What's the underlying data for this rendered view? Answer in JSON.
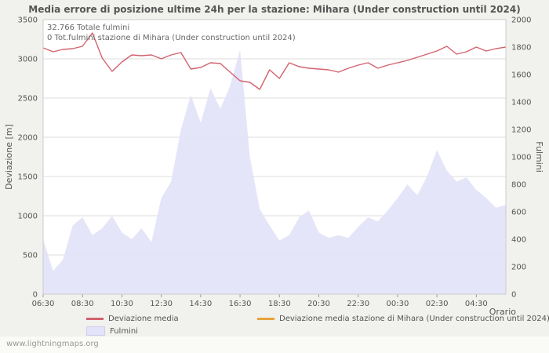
{
  "page": {
    "footer": "www.lightningmaps.org"
  },
  "chart_data": {
    "type": "line",
    "title": "Media errore di posizione ultime 24h per la stazione: Mihara (Under construction until 2024)",
    "annotations": [
      "32.766 Totale fulmini",
      "0 Tot.fulmini stazione di Mihara (Under construction until 2024)"
    ],
    "x_label": "Orario",
    "x_tick_every": 4,
    "x": [
      "06:30",
      "07:00",
      "07:30",
      "08:00",
      "08:30",
      "09:00",
      "09:30",
      "10:00",
      "10:30",
      "11:00",
      "11:30",
      "12:00",
      "12:30",
      "13:00",
      "13:30",
      "14:00",
      "14:30",
      "15:00",
      "15:30",
      "16:00",
      "16:30",
      "17:00",
      "17:30",
      "18:00",
      "18:30",
      "19:00",
      "19:30",
      "20:00",
      "20:30",
      "21:00",
      "21:30",
      "22:00",
      "22:30",
      "23:00",
      "23:30",
      "00:00",
      "00:30",
      "01:00",
      "01:30",
      "02:00",
      "02:30",
      "03:00",
      "03:30",
      "04:00",
      "04:30",
      "05:00",
      "05:30",
      "06:00"
    ],
    "left_axis": {
      "label": "Deviazione  [m]",
      "min": 0,
      "max": 3500,
      "ticks": [
        3500,
        3000,
        2500,
        2000,
        1500,
        1000,
        500,
        0
      ]
    },
    "right_axis": {
      "label": "Fulmini",
      "min": 0,
      "max": 2000,
      "ticks": [
        2000,
        1800,
        1600,
        1400,
        1200,
        1000,
        800,
        600,
        400,
        200,
        0
      ]
    },
    "series": [
      {
        "name": "Deviazione media",
        "type": "line",
        "axis": "left",
        "color": "#d2626e",
        "values": [
          3140,
          3090,
          3120,
          3130,
          3160,
          3330,
          3010,
          2840,
          2960,
          3050,
          3040,
          3050,
          3000,
          3050,
          3080,
          2870,
          2890,
          2950,
          2940,
          2830,
          2720,
          2700,
          2610,
          2860,
          2750,
          2950,
          2900,
          2880,
          2870,
          2860,
          2830,
          2880,
          2920,
          2950,
          2880,
          2920,
          2950,
          2980,
          3020,
          3060,
          3100,
          3160,
          3060,
          3090,
          3150,
          3100,
          3130,
          3150
        ]
      },
      {
        "name": "Deviazione media stazione di Mihara (Under construction until 2024)",
        "type": "line",
        "axis": "left",
        "color": "#e8a33d",
        "values": []
      },
      {
        "name": "Fulmini",
        "type": "area",
        "axis": "right",
        "color": "#e3e3f9",
        "values": [
          400,
          170,
          250,
          500,
          560,
          430,
          480,
          570,
          450,
          400,
          480,
          380,
          700,
          820,
          1200,
          1450,
          1250,
          1500,
          1350,
          1520,
          1780,
          1000,
          620,
          500,
          390,
          430,
          560,
          610,
          450,
          410,
          430,
          410,
          490,
          560,
          530,
          610,
          700,
          800,
          720,
          860,
          1050,
          900,
          820,
          850,
          760,
          700,
          630,
          650
        ]
      }
    ]
  }
}
